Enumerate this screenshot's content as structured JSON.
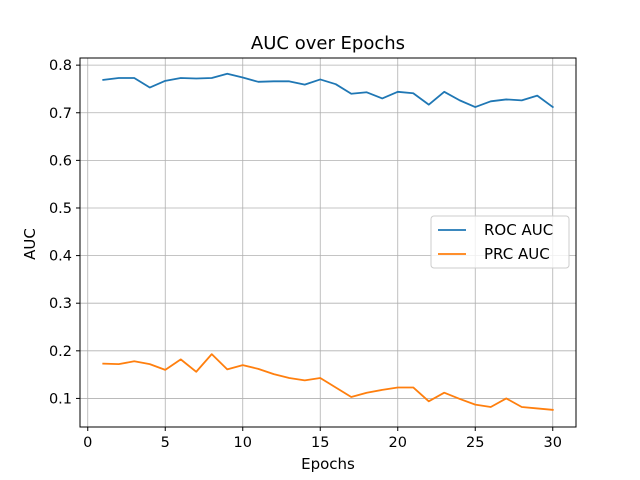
{
  "chart_data": {
    "type": "line",
    "title": "AUC over Epochs",
    "xlabel": "Epochs",
    "ylabel": "AUC",
    "xlim": [
      -0.5,
      31.5
    ],
    "ylim": [
      0.04,
      0.815
    ],
    "xticks": [
      0,
      5,
      10,
      15,
      20,
      25,
      30
    ],
    "yticks": [
      0.1,
      0.2,
      0.3,
      0.4,
      0.5,
      0.6,
      0.7,
      0.8
    ],
    "grid": true,
    "legend_position": "center-right",
    "x": [
      1,
      2,
      3,
      4,
      5,
      6,
      7,
      8,
      9,
      10,
      11,
      12,
      13,
      14,
      15,
      16,
      17,
      18,
      19,
      20,
      21,
      22,
      23,
      24,
      25,
      26,
      27,
      28,
      29,
      30
    ],
    "series": [
      {
        "name": "ROC AUC",
        "color": "#1f77b4",
        "values": [
          0.769,
          0.773,
          0.773,
          0.753,
          0.767,
          0.773,
          0.772,
          0.773,
          0.782,
          0.774,
          0.765,
          0.766,
          0.766,
          0.759,
          0.77,
          0.76,
          0.74,
          0.743,
          0.73,
          0.744,
          0.741,
          0.717,
          0.744,
          0.726,
          0.712,
          0.724,
          0.728,
          0.726,
          0.736,
          0.712
        ]
      },
      {
        "name": "PRC AUC",
        "color": "#ff7f0e",
        "values": [
          0.173,
          0.172,
          0.178,
          0.172,
          0.16,
          0.182,
          0.156,
          0.193,
          0.161,
          0.17,
          0.162,
          0.151,
          0.143,
          0.138,
          0.143,
          0.123,
          0.103,
          0.112,
          0.118,
          0.123,
          0.123,
          0.094,
          0.112,
          0.099,
          0.087,
          0.082,
          0.1,
          0.082,
          0.079,
          0.076
        ]
      }
    ]
  }
}
